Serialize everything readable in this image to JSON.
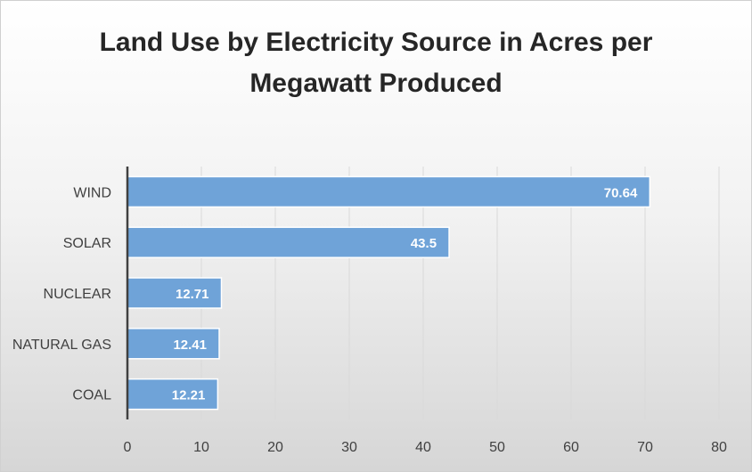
{
  "chart_data": {
    "type": "bar",
    "orientation": "horizontal",
    "title": "Land Use by Electricity Source in Acres per Megawatt Produced",
    "categories": [
      "WIND",
      "SOLAR",
      "NUCLEAR",
      "NATURAL GAS",
      "COAL"
    ],
    "values": [
      70.64,
      43.5,
      12.71,
      12.41,
      12.21
    ],
    "data_labels": [
      "70.64",
      "43.5",
      "12.71",
      "12.41",
      "12.21"
    ],
    "xlim": [
      0,
      80
    ],
    "x_ticks": [
      0,
      10,
      20,
      30,
      40,
      50,
      60,
      70,
      80
    ],
    "x_tick_labels": [
      "0",
      "10",
      "20",
      "30",
      "40",
      "50",
      "60",
      "70",
      "80"
    ],
    "grid": "vertical",
    "legend": "none",
    "bar_color": "#6fa3d8",
    "bar_edge_color": "#ffffff"
  }
}
